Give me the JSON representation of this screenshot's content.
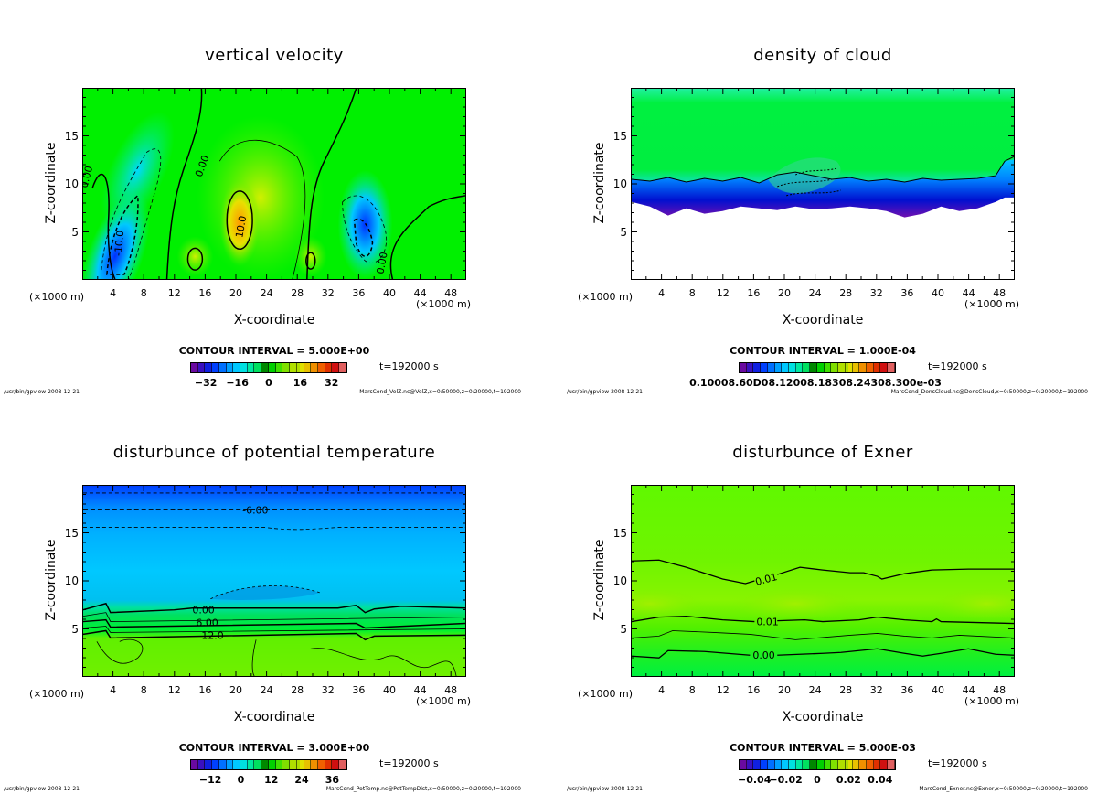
{
  "colors": {
    "background": "#ffffff",
    "axis": "#000000",
    "green": "#00ff00",
    "yellowgreen": "#80ff00",
    "cyan": "#00ddff",
    "blue": "#0040ff",
    "purple": "#7010b0"
  },
  "chart_data": [
    {
      "type": "heatmap",
      "title": "vertical velocity",
      "xlabel": "X-coordinate",
      "ylabel": "Z-coordinate",
      "x_unit_left": "(×1000 m)",
      "x_unit_right": "(×1000 m)",
      "xlim": [
        0,
        50
      ],
      "ylim": [
        0,
        20
      ],
      "xticks": [
        "4",
        "8",
        "12",
        "16",
        "20",
        "24",
        "28",
        "32",
        "36",
        "40",
        "44",
        "48"
      ],
      "yticks": [
        "5",
        "10",
        "15"
      ],
      "contour_interval": "CONTOUR INTERVAL = 5.000E+00",
      "contour_labels": [
        "0.00",
        "0.00",
        "10.0",
        "-10.0",
        "0.00"
      ],
      "colorbar_ticks": [
        "−32",
        "−16",
        "0",
        "16",
        "32"
      ],
      "colorbar_range": [
        -40,
        40
      ],
      "time_label": "t=192000 s",
      "footer_left": "/usr/bin/gpview  2008-12-21",
      "footer_right": "MarsCond_VelZ.nc@VelZ,x=0:50000,z=0:20000,t=192000"
    },
    {
      "type": "heatmap",
      "title": "density of cloud",
      "xlabel": "X-coordinate",
      "ylabel": "Z-coordinate",
      "x_unit_left": "(×1000 m)",
      "x_unit_right": "(×1000 m)",
      "xlim": [
        0,
        50
      ],
      "ylim": [
        0,
        20
      ],
      "xticks": [
        "4",
        "8",
        "12",
        "16",
        "20",
        "24",
        "28",
        "32",
        "36",
        "40",
        "44",
        "48"
      ],
      "yticks": [
        "5",
        "10",
        "15"
      ],
      "contour_interval": "CONTOUR INTERVAL = 1.000E-04",
      "colorbar_ticks_text": "0.10008.60D08.12008.18308.24308.300e-03",
      "time_label": "t=192000 s",
      "footer_left": "/usr/bin/gpview  2008-12-21",
      "footer_right": "MarsCond_DensCloud.nc@DensCloud,x=0:50000,z=0:20000,t=192000"
    },
    {
      "type": "heatmap",
      "title": "disturbunce of potential temperature",
      "xlabel": "X-coordinate",
      "ylabel": "Z-coordinate",
      "x_unit_left": "(×1000 m)",
      "x_unit_right": "(×1000 m)",
      "xlim": [
        0,
        50
      ],
      "ylim": [
        0,
        20
      ],
      "xticks": [
        "4",
        "8",
        "12",
        "16",
        "20",
        "24",
        "28",
        "32",
        "36",
        "40",
        "44",
        "48"
      ],
      "yticks": [
        "5",
        "10",
        "15"
      ],
      "contour_interval": "CONTOUR INTERVAL = 3.000E+00",
      "contour_labels": [
        "-6.00",
        "0.00",
        "6.00",
        "12.0"
      ],
      "colorbar_ticks": [
        "−12",
        "0",
        "12",
        "24",
        "36"
      ],
      "colorbar_range": [
        -20,
        42
      ],
      "time_label": "t=192000 s",
      "footer_left": "/usr/bin/gpview  2008-12-21",
      "footer_right": "MarsCond_PotTemp.nc@PotTempDist,x=0:50000,z=0:20000,t=192000"
    },
    {
      "type": "heatmap",
      "title": "disturbunce of Exner",
      "xlabel": "X-coordinate",
      "ylabel": "Z-coordinate",
      "x_unit_left": "(×1000 m)",
      "x_unit_right": "(×1000 m)",
      "xlim": [
        0,
        50
      ],
      "ylim": [
        0,
        20
      ],
      "xticks": [
        "4",
        "8",
        "12",
        "16",
        "20",
        "24",
        "28",
        "32",
        "36",
        "40",
        "44",
        "48"
      ],
      "yticks": [
        "5",
        "10",
        "15"
      ],
      "contour_interval": "CONTOUR INTERVAL = 5.000E-03",
      "contour_labels": [
        "0.01",
        "0.01",
        "0.00"
      ],
      "colorbar_ticks": [
        "−0.04",
        "−0.02",
        "0",
        "0.02",
        "0.04"
      ],
      "colorbar_range": [
        -0.05,
        0.05
      ],
      "time_label": "t=192000 s",
      "footer_left": "/usr/bin/gpview  2008-12-21",
      "footer_right": "MarsCond_Exner.nc@Exner,x=0:50000,z=0:20000,t=192000"
    }
  ]
}
